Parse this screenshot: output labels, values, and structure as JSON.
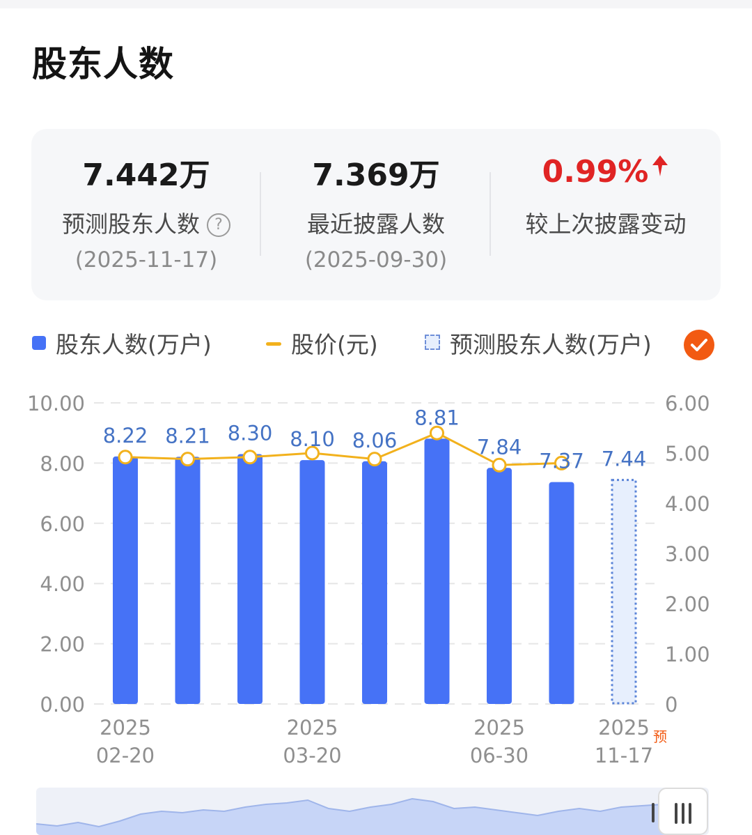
{
  "title": "股东人数",
  "summary": {
    "predicted": {
      "value": "7.442万",
      "label": "预测股东人数",
      "date": "(2025-11-17)",
      "help": "?"
    },
    "latest": {
      "value": "7.369万",
      "label": "最近披露人数",
      "date": "(2025-09-30)"
    },
    "change": {
      "value": "0.99%",
      "label": "较上次披露变动",
      "color": "#e02424",
      "icon": "arrow-up-icon"
    }
  },
  "legend": {
    "bar": "股东人数(万户)",
    "line": "股价(元)",
    "predicted": "预测股东人数(万户)",
    "toggle_icon": "check-icon"
  },
  "colors": {
    "bar": "#4672f6",
    "line": "#f2b11c",
    "label": "#4472c4",
    "predicted_fill": "#e7effd",
    "predicted_border": "#5b84d8",
    "accent": "#f25a12"
  },
  "chart_data": {
    "type": "bar",
    "categories": [
      "2025-02-20",
      "",
      "",
      "2025-03-20",
      "",
      "",
      "2025-06-30",
      "",
      "2025-11-17"
    ],
    "x_tick_labels": [
      {
        "index": 0,
        "line1": "2025",
        "line2": "02-20"
      },
      {
        "index": 3,
        "line1": "2025",
        "line2": "03-20"
      },
      {
        "index": 6,
        "line1": "2025",
        "line2": "06-30"
      },
      {
        "index": 8,
        "line1": "2025",
        "line2": "11-17",
        "tag": "预"
      }
    ],
    "series": [
      {
        "name": "股东人数(万户)",
        "type": "bar",
        "values": [
          8.22,
          8.21,
          8.3,
          8.1,
          8.06,
          8.81,
          7.84,
          7.37,
          null
        ],
        "labels": [
          "8.22",
          "8.21",
          "8.30",
          "8.10",
          "8.06",
          "8.81",
          "7.84",
          "7.37",
          ""
        ]
      },
      {
        "name": "股价(元)",
        "type": "line",
        "axis": "right",
        "values": [
          4.92,
          4.88,
          4.92,
          5.0,
          4.88,
          5.4,
          4.76,
          4.8,
          null
        ]
      },
      {
        "name": "预测股东人数(万户)",
        "type": "bar-predicted",
        "values": [
          null,
          null,
          null,
          null,
          null,
          null,
          null,
          null,
          7.44
        ],
        "labels": [
          "",
          "",
          "",
          "",
          "",
          "",
          "",
          "",
          "7.44"
        ]
      }
    ],
    "y_left": {
      "ticks": [
        "0.00",
        "2.00",
        "4.00",
        "6.00",
        "8.00",
        "10.00"
      ],
      "ylim": [
        0,
        10
      ]
    },
    "y_right": {
      "ticks": [
        "0",
        "1.00",
        "2.00",
        "3.00",
        "4.00",
        "5.00",
        "6.00"
      ],
      "ylim": [
        0,
        6
      ]
    },
    "grid": true
  }
}
